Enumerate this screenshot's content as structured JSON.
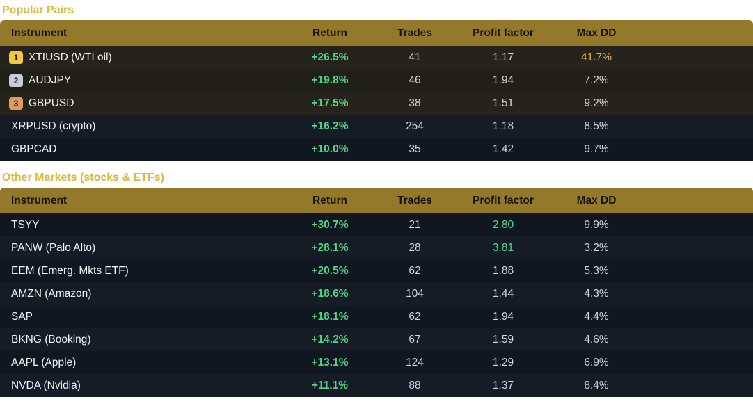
{
  "sections": [
    {
      "title": "Popular Pairs",
      "headers": {
        "instrument": "Instrument",
        "return": "Return",
        "trades": "Trades",
        "profit_factor": "Profit factor",
        "max_dd": "Max DD"
      },
      "rows": [
        {
          "rank": "1",
          "instrument": "XTIUSD (WTI oil)",
          "return": "+26.5%",
          "trades": "41",
          "profit_factor": "1.17",
          "max_dd": "41.7%"
        },
        {
          "rank": "2",
          "instrument": "AUDJPY",
          "return": "+19.8%",
          "trades": "46",
          "profit_factor": "1.94",
          "max_dd": "7.2%"
        },
        {
          "rank": "3",
          "instrument": "GBPUSD",
          "return": "+17.5%",
          "trades": "38",
          "profit_factor": "1.51",
          "max_dd": "9.2%"
        },
        {
          "rank": "",
          "instrument": "XRPUSD (crypto)",
          "return": "+16.2%",
          "trades": "254",
          "profit_factor": "1.18",
          "max_dd": "8.5%"
        },
        {
          "rank": "",
          "instrument": "GBPCAD",
          "return": "+10.0%",
          "trades": "35",
          "profit_factor": "1.42",
          "max_dd": "9.7%"
        }
      ]
    },
    {
      "title": "Other Markets (stocks & ETFs)",
      "headers": {
        "instrument": "Instrument",
        "return": "Return",
        "trades": "Trades",
        "profit_factor": "Profit factor",
        "max_dd": "Max DD"
      },
      "rows": [
        {
          "rank": "",
          "instrument": "TSYY",
          "return": "+30.7%",
          "trades": "21",
          "profit_factor": "2.80",
          "max_dd": "9.9%"
        },
        {
          "rank": "",
          "instrument": "PANW (Palo Alto)",
          "return": "+28.1%",
          "trades": "28",
          "profit_factor": "3.81",
          "max_dd": "3.2%"
        },
        {
          "rank": "",
          "instrument": "EEM (Emerg. Mkts ETF)",
          "return": "+20.5%",
          "trades": "62",
          "profit_factor": "1.88",
          "max_dd": "5.3%"
        },
        {
          "rank": "",
          "instrument": "AMZN (Amazon)",
          "return": "+18.6%",
          "trades": "104",
          "profit_factor": "1.44",
          "max_dd": "4.3%"
        },
        {
          "rank": "",
          "instrument": "SAP",
          "return": "+18.1%",
          "trades": "62",
          "profit_factor": "1.94",
          "max_dd": "4.4%"
        },
        {
          "rank": "",
          "instrument": "BKNG (Booking)",
          "return": "+14.2%",
          "trades": "67",
          "profit_factor": "1.59",
          "max_dd": "4.6%"
        },
        {
          "rank": "",
          "instrument": "AAPL (Apple)",
          "return": "+13.1%",
          "trades": "124",
          "profit_factor": "1.29",
          "max_dd": "6.9%"
        },
        {
          "rank": "",
          "instrument": "NVDA (Nvidia)",
          "return": "+11.1%",
          "trades": "88",
          "profit_factor": "1.37",
          "max_dd": "8.4%"
        }
      ]
    }
  ],
  "colors": {
    "header_gold": "#94792a",
    "title_gold": "#dcb83c",
    "positive_green": "#4fd787",
    "warning_amber": "#f2b23a",
    "rank_1": "#f3c73f",
    "rank_2": "#c9ced6",
    "rank_3": "#df9a63"
  }
}
